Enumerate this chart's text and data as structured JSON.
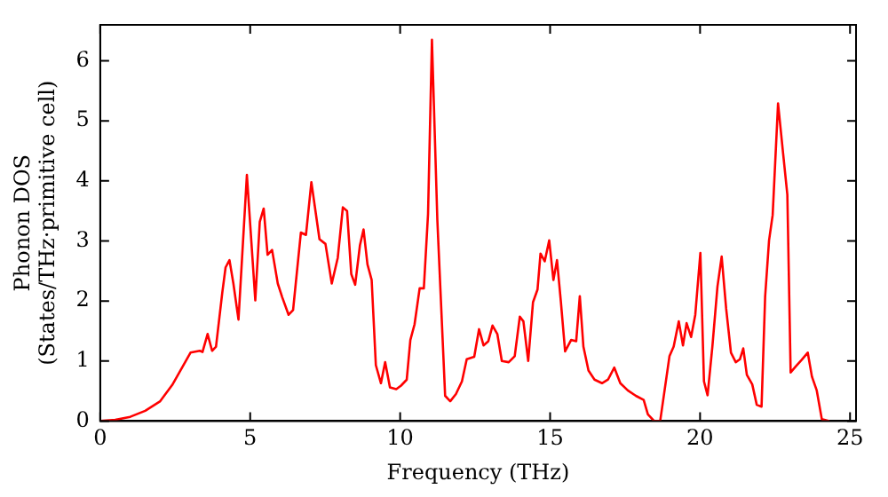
{
  "chart_data": {
    "type": "line",
    "xlabel": "Frequency (THz)",
    "ylabel": "Phonon DOS\n(States/THz·primitive cell)",
    "xlim": [
      0,
      25.2
    ],
    "xticks": [
      0,
      5,
      10,
      15,
      20,
      25
    ],
    "ylim": [
      0,
      6.6
    ],
    "yticks": [
      0,
      1,
      2,
      3,
      4,
      5,
      6
    ],
    "marker": "none",
    "line_style": "solid",
    "series": [
      {
        "color": "#ff0000",
        "x": [
          0,
          0.5,
          1,
          1.5,
          2,
          2.4,
          3.01,
          3.32,
          3.41,
          3.58,
          3.73,
          3.86,
          4.07,
          4.18,
          4.31,
          4.44,
          4.61,
          4.89,
          5.17,
          5.32,
          5.45,
          5.58,
          5.73,
          5.92,
          6.07,
          6.28,
          6.43,
          6.69,
          6.86,
          7.04,
          7.31,
          7.51,
          7.72,
          7.92,
          8.09,
          8.23,
          8.37,
          8.5,
          8.66,
          8.78,
          8.91,
          9.05,
          9.19,
          9.36,
          9.5,
          9.66,
          9.87,
          10.03,
          10.22,
          10.34,
          10.48,
          10.65,
          10.79,
          10.93,
          11.06,
          11.24,
          11.5,
          11.67,
          11.86,
          12.06,
          12.22,
          12.47,
          12.63,
          12.78,
          12.94,
          13.08,
          13.24,
          13.39,
          13.62,
          13.82,
          13.99,
          14.11,
          14.27,
          14.43,
          14.58,
          14.68,
          14.82,
          14.97,
          15.11,
          15.23,
          15.36,
          15.5,
          15.7,
          15.87,
          15.99,
          16.11,
          16.28,
          16.48,
          16.73,
          16.93,
          17.14,
          17.34,
          17.59,
          17.86,
          18.12,
          18.26,
          18.47,
          18.67,
          18.98,
          19.12,
          19.29,
          19.43,
          19.55,
          19.7,
          19.84,
          20.01,
          20.13,
          20.25,
          20.41,
          20.58,
          20.72,
          20.87,
          21.03,
          21.19,
          21.33,
          21.44,
          21.56,
          21.74,
          21.89,
          22.05,
          22.17,
          22.3,
          22.42,
          22.6,
          22.77,
          22.91,
          23.02,
          23.19,
          23.39,
          23.59,
          23.73,
          23.89,
          24.06,
          24.31
        ],
        "values": [
          0,
          0.02,
          0.07,
          0.17,
          0.33,
          0.6,
          1.14,
          1.17,
          1.15,
          1.45,
          1.17,
          1.24,
          2.14,
          2.56,
          2.68,
          2.29,
          1.69,
          4.1,
          2.01,
          3.32,
          3.54,
          2.77,
          2.85,
          2.29,
          2.06,
          1.77,
          1.85,
          3.14,
          3.1,
          3.98,
          3.03,
          2.95,
          2.29,
          2.72,
          3.56,
          3.5,
          2.45,
          2.27,
          2.93,
          3.19,
          2.61,
          2.35,
          0.93,
          0.63,
          0.98,
          0.56,
          0.53,
          0.59,
          0.69,
          1.35,
          1.61,
          2.21,
          2.21,
          3.45,
          6.35,
          3.35,
          0.42,
          0.33,
          0.45,
          0.66,
          1.03,
          1.07,
          1.53,
          1.26,
          1.33,
          1.59,
          1.45,
          1.0,
          0.98,
          1.08,
          1.74,
          1.66,
          1.0,
          1.98,
          2.19,
          2.79,
          2.66,
          3.01,
          2.35,
          2.68,
          1.98,
          1.16,
          1.35,
          1.33,
          2.08,
          1.24,
          0.84,
          0.69,
          0.63,
          0.69,
          0.89,
          0.63,
          0.51,
          0.42,
          0.35,
          0.11,
          0,
          0,
          1.08,
          1.24,
          1.66,
          1.26,
          1.63,
          1.4,
          1.77,
          2.8,
          0.66,
          0.43,
          1.24,
          2.24,
          2.74,
          1.87,
          1.14,
          0.98,
          1.03,
          1.21,
          0.77,
          0.61,
          0.27,
          0.24,
          2.08,
          3.01,
          3.43,
          5.29,
          4.45,
          3.77,
          0.81,
          0.91,
          1.02,
          1.14,
          0.74,
          0.51,
          0.03,
          0
        ]
      }
    ]
  }
}
